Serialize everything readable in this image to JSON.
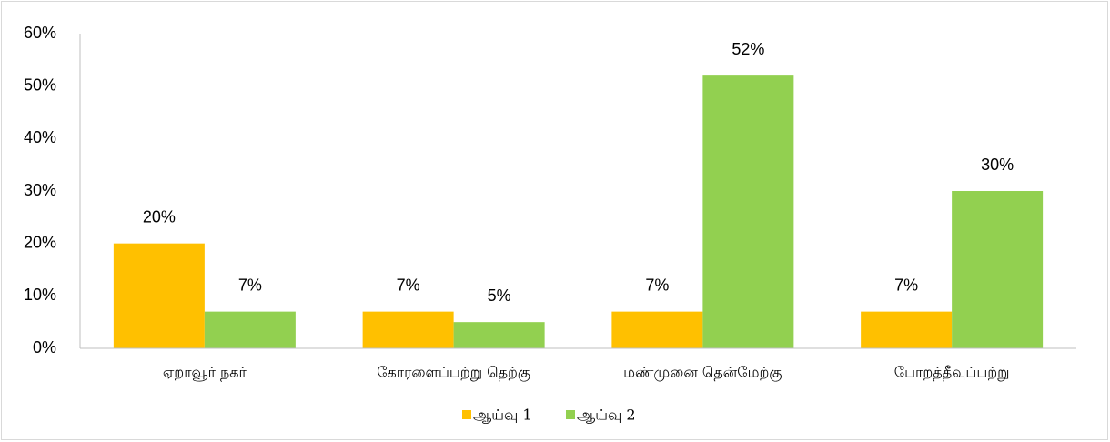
{
  "chart_data": {
    "type": "bar",
    "categories": [
      "ஏறாவூர் நகர்",
      "கோரளைப்பற்று தெற்கு",
      "மண்முனை தென்மேற்கு",
      "போறத்தீவுப்பற்று"
    ],
    "series": [
      {
        "name": "ஆய்வு 1",
        "color": "#ffc000",
        "values": [
          20,
          7,
          7,
          7
        ],
        "value_labels": [
          "20%",
          "7%",
          "7%",
          "7%"
        ]
      },
      {
        "name": "ஆய்வு 2",
        "color": "#92d050",
        "values": [
          7,
          5,
          52,
          30
        ],
        "value_labels": [
          "7%",
          "5%",
          "52%",
          "30%"
        ]
      }
    ],
    "ylim": [
      0,
      60
    ],
    "yticks": [
      {
        "value": 0,
        "label": "0%"
      },
      {
        "value": 10,
        "label": "10%"
      },
      {
        "value": 20,
        "label": "20%"
      },
      {
        "value": 30,
        "label": "30%"
      },
      {
        "value": 40,
        "label": "40%"
      },
      {
        "value": 50,
        "label": "50%"
      },
      {
        "value": 60,
        "label": "60%"
      }
    ],
    "grid": false,
    "legend": "bottom"
  }
}
